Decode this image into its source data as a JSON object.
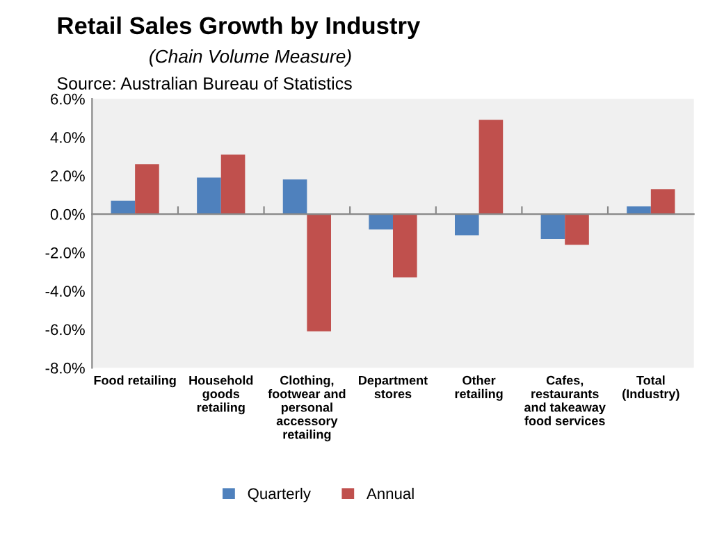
{
  "chart_data": {
    "type": "bar",
    "title": "Retail Sales Growth by Industry",
    "subtitle": "(Chain Volume Measure)",
    "annotations": [
      "Source: Australian Bureau of Statistics"
    ],
    "categories": [
      "Food retailing",
      "Household goods retailing",
      "Clothing, footwear and personal accessory retailing",
      "Department stores",
      "Other retailing",
      "Cafes, restaurants and takeaway food services",
      "Total (Industry)"
    ],
    "series": [
      {
        "name": "Quarterly",
        "color": "#4f81bd",
        "values": [
          0.7,
          1.9,
          1.8,
          -0.8,
          -1.1,
          -1.3,
          0.4
        ]
      },
      {
        "name": "Annual",
        "color": "#c0504d",
        "values": [
          2.6,
          3.1,
          -6.1,
          -3.3,
          4.9,
          -1.6,
          1.3
        ]
      }
    ],
    "ylim": [
      -8,
      6
    ],
    "yticks": [
      {
        "value": -8,
        "label": "-8.0%"
      },
      {
        "value": -6,
        "label": "-6.0%"
      },
      {
        "value": -4,
        "label": "-4.0%"
      },
      {
        "value": -2,
        "label": "-2.0%"
      },
      {
        "value": 0,
        "label": "0.0%"
      },
      {
        "value": 2,
        "label": "2.0%"
      },
      {
        "value": 4,
        "label": "4.0%"
      },
      {
        "value": 6,
        "label": "6.0%"
      }
    ],
    "legend": "bottom"
  }
}
